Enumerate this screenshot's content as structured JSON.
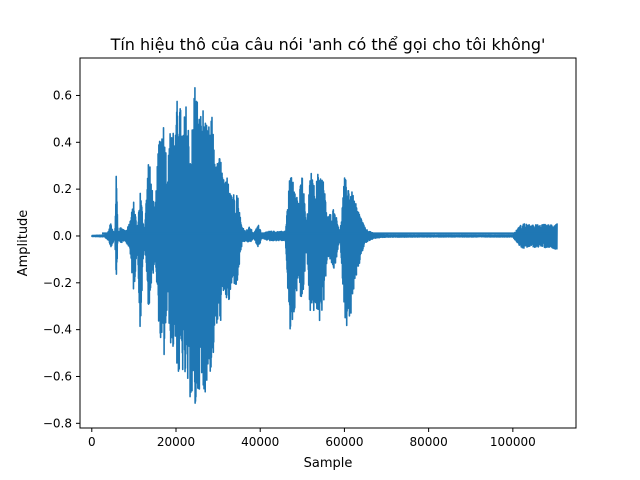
{
  "chart_data": {
    "type": "line",
    "title": "Tín hiệu thô của câu nói 'anh có thể gọi cho tôi không'",
    "xlabel": "Sample",
    "ylabel": "Amplitude",
    "xlim": [
      -2800,
      115000
    ],
    "ylim": [
      -0.82,
      0.76
    ],
    "x_ticks": [
      0,
      20000,
      40000,
      60000,
      80000,
      100000
    ],
    "x_tick_labels": [
      "0",
      "20000",
      "40000",
      "60000",
      "80000",
      "100000"
    ],
    "y_ticks": [
      -0.8,
      -0.6,
      -0.4,
      -0.2,
      0.0,
      0.2,
      0.4,
      0.6
    ],
    "y_tick_labels": [
      "−0.8",
      "−0.6",
      "−0.4",
      "−0.2",
      "0.0",
      "0.2",
      "0.4",
      "0.6"
    ],
    "grid": false,
    "series_color": "#1f77b4",
    "envelope": {
      "x": [
        0,
        3000,
        4000,
        4500,
        5000,
        5500,
        5800,
        6200,
        7000,
        8000,
        9000,
        10000,
        10800,
        11500,
        12500,
        13500,
        15000,
        16000,
        17000,
        18000,
        19000,
        19800,
        20500,
        21500,
        22500,
        23500,
        24500,
        25500,
        26500,
        27500,
        28500,
        29500,
        30500,
        31500,
        32500,
        33500,
        34500,
        35500,
        36500,
        37500,
        38500,
        39500,
        40500,
        42000,
        44000,
        46000,
        47000,
        48000,
        49000,
        50000,
        51000,
        52000,
        53000,
        54000,
        55000,
        56000,
        57500,
        59000,
        60000,
        61000,
        62000,
        63000,
        64000,
        65000,
        66000,
        67000,
        70000,
        80000,
        90000,
        100000,
        101500,
        102500,
        103500,
        104500,
        105500,
        106500,
        107500,
        108500,
        109500,
        110500
      ],
      "upper": [
        0.002,
        0.004,
        0.02,
        0.06,
        0.03,
        0.015,
        0.3,
        0.02,
        0.04,
        0.02,
        0.06,
        0.15,
        0.03,
        0.2,
        0.02,
        0.35,
        0.1,
        0.45,
        0.5,
        0.3,
        0.55,
        0.4,
        0.68,
        0.45,
        0.58,
        0.35,
        0.69,
        0.52,
        0.55,
        0.45,
        0.52,
        0.3,
        0.35,
        0.22,
        0.28,
        0.18,
        0.2,
        0.05,
        0.02,
        0.04,
        0.01,
        0.05,
        0.01,
        0.02,
        0.02,
        0.02,
        0.25,
        0.27,
        0.15,
        0.27,
        0.05,
        0.28,
        0.2,
        0.3,
        0.24,
        0.08,
        0.12,
        0.02,
        0.25,
        0.22,
        0.18,
        0.12,
        0.08,
        0.03,
        0.02,
        0.01,
        0.005,
        0.004,
        0.004,
        0.004,
        0.04,
        0.055,
        0.05,
        0.045,
        0.05,
        0.045,
        0.05,
        0.048,
        0.052,
        0.058
      ],
      "lower": [
        -0.002,
        -0.004,
        -0.02,
        -0.05,
        -0.03,
        -0.015,
        -0.21,
        -0.02,
        -0.03,
        -0.02,
        -0.06,
        -0.25,
        -0.03,
        -0.42,
        -0.02,
        -0.32,
        -0.1,
        -0.4,
        -0.57,
        -0.3,
        -0.52,
        -0.45,
        -0.62,
        -0.58,
        -0.65,
        -0.7,
        -0.77,
        -0.65,
        -0.72,
        -0.6,
        -0.58,
        -0.4,
        -0.38,
        -0.25,
        -0.3,
        -0.2,
        -0.22,
        -0.05,
        -0.02,
        -0.03,
        -0.01,
        -0.05,
        -0.01,
        -0.02,
        -0.02,
        -0.02,
        -0.43,
        -0.35,
        -0.18,
        -0.32,
        -0.05,
        -0.38,
        -0.3,
        -0.38,
        -0.3,
        -0.08,
        -0.15,
        -0.02,
        -0.33,
        -0.44,
        -0.25,
        -0.18,
        -0.08,
        -0.03,
        -0.02,
        -0.01,
        -0.005,
        -0.004,
        -0.004,
        -0.004,
        -0.04,
        -0.055,
        -0.05,
        -0.045,
        -0.05,
        -0.045,
        -0.05,
        -0.048,
        -0.052,
        -0.058
      ]
    }
  }
}
